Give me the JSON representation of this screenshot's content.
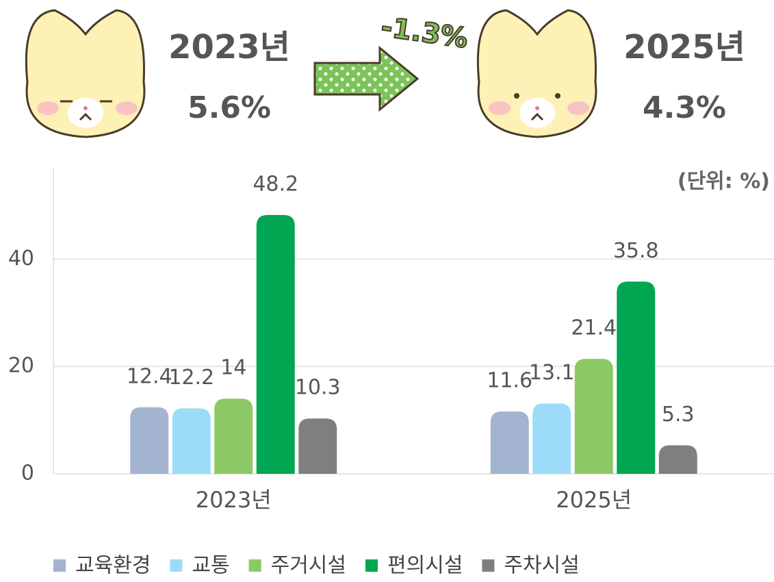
{
  "header": {
    "left_year": "2023년",
    "left_value": "5.6%",
    "change": "-1.3%",
    "right_year": "2025년",
    "right_value": "4.3%"
  },
  "chart_data": {
    "type": "bar",
    "unit": "(단위: %)",
    "categories": [
      "2023년",
      "2025년"
    ],
    "series": [
      {
        "name": "교육환경",
        "color": "#a3b4d0",
        "values": [
          12.4,
          11.6
        ]
      },
      {
        "name": "교통",
        "color": "#9ddcf8",
        "values": [
          12.2,
          13.1
        ]
      },
      {
        "name": "주거시설",
        "color": "#8cc864",
        "values": [
          14,
          21.4
        ]
      },
      {
        "name": "편의시설",
        "color": "#00a651",
        "values": [
          48.2,
          35.8
        ]
      },
      {
        "name": "주차시설",
        "color": "#7f7f7f",
        "values": [
          10.3,
          5.3
        ]
      }
    ],
    "ylim": [
      0,
      57
    ],
    "yticks": [
      0,
      20,
      40
    ],
    "grid": true,
    "legend": "bottom"
  }
}
